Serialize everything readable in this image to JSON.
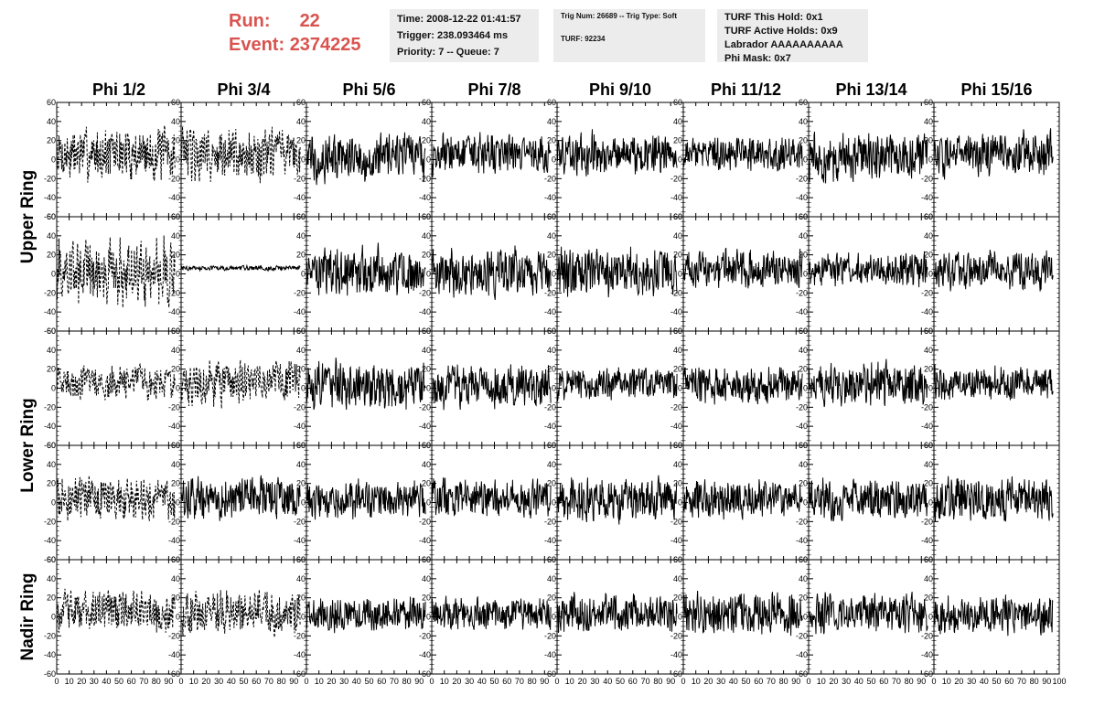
{
  "header": {
    "run_label": "Run:",
    "run_value": "22",
    "event_label": "Event:",
    "event_value": "2374225"
  },
  "info": {
    "time": "Time: 2008-12-22 01:41:57",
    "trigger": "Trigger: 238.093464 ms",
    "priority": "Priority: 7 -- Queue: 7",
    "trig_num": "Trig Num: 26689 -- Trig Type: Soft",
    "turf": "TURF: 92234",
    "turf_hold": "TURF This Hold: 0x1",
    "turf_active": "TURF Active Holds: 0x9",
    "labrador": "Labrador AAAAAAAAAA",
    "phi_mask": "Phi Mask: 0x7"
  },
  "chart_data": {
    "type": "line",
    "columns": [
      "Phi 1/2",
      "Phi 3/4",
      "Phi 5/6",
      "Phi 7/8",
      "Phi 9/10",
      "Phi 11/12",
      "Phi 13/14",
      "Phi 15/16"
    ],
    "ring_labels": [
      {
        "text": "Upper Ring",
        "rows": [
          0,
          1
        ]
      },
      {
        "text": "Lower Ring",
        "rows": [
          2,
          3
        ]
      },
      {
        "text": "Nadir Ring",
        "rows": [
          4
        ]
      }
    ],
    "xlim": [
      0,
      100
    ],
    "ylim": [
      -60,
      60
    ],
    "x_ticks": [
      0,
      10,
      20,
      30,
      40,
      50,
      60,
      70,
      80,
      90,
      100
    ],
    "y_ticks": [
      -60,
      -40,
      -20,
      0,
      20,
      40,
      60
    ],
    "note": "Each panel shows a waveform trace of ~260 samples spanning x 0 to 95; amplitudes approximated per panel",
    "panels": [
      [
        {
          "style": "dashed",
          "amp": 22,
          "offset": 6
        },
        {
          "style": "dashed",
          "amp": 22,
          "offset": 5
        },
        {
          "style": "solid",
          "amp": 20,
          "offset": 3
        },
        {
          "style": "solid",
          "amp": 17,
          "offset": 5
        },
        {
          "style": "solid",
          "amp": 17,
          "offset": 7
        },
        {
          "style": "solid",
          "amp": 14,
          "offset": 6
        },
        {
          "style": "solid",
          "amp": 20,
          "offset": 3
        },
        {
          "style": "solid",
          "amp": 18,
          "offset": 5
        }
      ],
      [
        {
          "style": "dashed",
          "amp": 28,
          "offset": 2
        },
        {
          "style": "solid",
          "amp": 2,
          "offset": 6
        },
        {
          "style": "solid",
          "amp": 20,
          "offset": 2
        },
        {
          "style": "solid",
          "amp": 20,
          "offset": 2
        },
        {
          "style": "solid",
          "amp": 20,
          "offset": 2
        },
        {
          "style": "solid",
          "amp": 16,
          "offset": 6
        },
        {
          "style": "solid",
          "amp": 14,
          "offset": 4
        },
        {
          "style": "solid",
          "amp": 16,
          "offset": 4
        }
      ],
      [
        {
          "style": "dashed",
          "amp": 14,
          "offset": 6
        },
        {
          "style": "dashed",
          "amp": 18,
          "offset": 5
        },
        {
          "style": "solid",
          "amp": 20,
          "offset": 2
        },
        {
          "style": "solid",
          "amp": 18,
          "offset": 2
        },
        {
          "style": "solid",
          "amp": 14,
          "offset": 5
        },
        {
          "style": "solid",
          "amp": 16,
          "offset": 4
        },
        {
          "style": "solid",
          "amp": 18,
          "offset": 4
        },
        {
          "style": "solid",
          "amp": 14,
          "offset": 5
        }
      ],
      [
        {
          "style": "dashed",
          "amp": 18,
          "offset": 4
        },
        {
          "style": "solid",
          "amp": 18,
          "offset": 4
        },
        {
          "style": "solid",
          "amp": 16,
          "offset": 3
        },
        {
          "style": "solid",
          "amp": 16,
          "offset": 4
        },
        {
          "style": "solid",
          "amp": 18,
          "offset": 3
        },
        {
          "style": "solid",
          "amp": 16,
          "offset": 4
        },
        {
          "style": "solid",
          "amp": 18,
          "offset": 3
        },
        {
          "style": "solid",
          "amp": 18,
          "offset": 3
        }
      ],
      [
        {
          "style": "dashed",
          "amp": 18,
          "offset": 5
        },
        {
          "style": "dashed",
          "amp": 18,
          "offset": 4
        },
        {
          "style": "solid",
          "amp": 14,
          "offset": 3
        },
        {
          "style": "solid",
          "amp": 14,
          "offset": 3
        },
        {
          "style": "solid",
          "amp": 16,
          "offset": 3
        },
        {
          "style": "solid",
          "amp": 18,
          "offset": 3
        },
        {
          "style": "solid",
          "amp": 16,
          "offset": 3
        },
        {
          "style": "solid",
          "amp": 16,
          "offset": 3
        }
      ]
    ]
  }
}
